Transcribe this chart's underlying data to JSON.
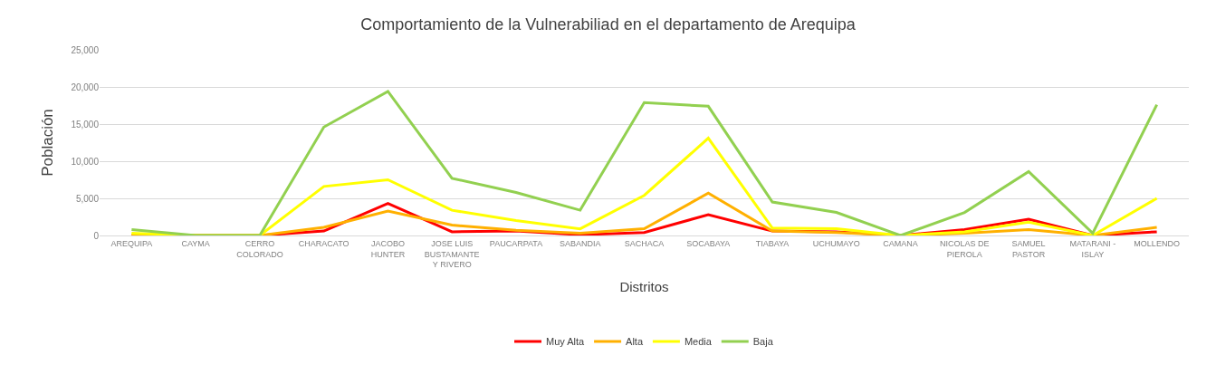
{
  "chart_data": {
    "type": "line",
    "title": "Comportamiento de la Vulnerabiliad en el departamento de Arequipa",
    "xlabel": "Distritos",
    "ylabel": "Población",
    "categories": [
      "AREQUIPA",
      "CAYMA",
      "CERRO COLORADO",
      "CHARACATO",
      "JACOBO HUNTER",
      "JOSE LUIS BUSTAMANTE Y RIVERO",
      "PAUCARPATA",
      "SABANDIA",
      "SACHACA",
      "SOCABAYA",
      "TIABAYA",
      "UCHUMAYO",
      "CAMANA",
      "NICOLAS DE PIEROLA",
      "SAMUEL PASTOR",
      "MATARANI - ISLAY",
      "MOLLENDO"
    ],
    "series": [
      {
        "name": "Muy Alta",
        "color": "#ff0000",
        "values": [
          0,
          0,
          0,
          600,
          4300,
          500,
          600,
          100,
          400,
          2800,
          600,
          500,
          0,
          800,
          2200,
          0,
          500
        ]
      },
      {
        "name": "Alta",
        "color": "#ffb000",
        "values": [
          100,
          0,
          0,
          1100,
          3300,
          1400,
          700,
          300,
          900,
          5700,
          600,
          400,
          0,
          300,
          800,
          0,
          1100
        ]
      },
      {
        "name": "Media",
        "color": "#ffff00",
        "values": [
          300,
          0,
          0,
          6600,
          7500,
          3400,
          2000,
          900,
          5400,
          13100,
          1000,
          900,
          0,
          500,
          1800,
          0,
          5000
        ]
      },
      {
        "name": "Baja",
        "color": "#92d050",
        "values": [
          800,
          0,
          0,
          14600,
          19400,
          7700,
          5800,
          3400,
          17900,
          17400,
          4500,
          3100,
          0,
          3100,
          8600,
          300,
          17600
        ]
      }
    ],
    "ylim": [
      0,
      25000
    ],
    "yticks": [
      {
        "value": 0,
        "label": "0"
      },
      {
        "value": 5000,
        "label": "5,000"
      },
      {
        "value": 10000,
        "label": "10,000"
      },
      {
        "value": 15000,
        "label": "15,000"
      },
      {
        "value": 20000,
        "label": "20,000"
      },
      {
        "value": 25000,
        "label": "25,000"
      }
    ],
    "grid": "y",
    "legend": "bottom",
    "marker": "none",
    "line_style": "solid"
  }
}
